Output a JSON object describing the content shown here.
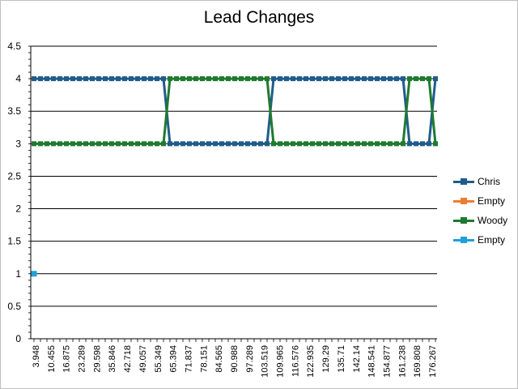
{
  "chart_data": {
    "type": "line",
    "title": "Lead Changes",
    "xlabel": "",
    "ylabel": "",
    "ylim": [
      0,
      4.5
    ],
    "y_ticks": [
      "0",
      "0.5",
      "1",
      "1.5",
      "2",
      "2.5",
      "3",
      "3.5",
      "4",
      "4.5"
    ],
    "x_tick_labels": [
      "3.948",
      "10.455",
      "16.875",
      "23.289",
      "29.598",
      "35.846",
      "42.718",
      "49.057",
      "55.349",
      "65.394",
      "71.837",
      "78.151",
      "84.565",
      "90.988",
      "97.289",
      "103.519",
      "109.965",
      "116.576",
      "122.935",
      "129.29",
      "135.71",
      "142.14",
      "148.541",
      "154.877",
      "161.238",
      "169.808",
      "176.267"
    ],
    "point_count": 63,
    "grid": true,
    "legend_position": "right",
    "series": [
      {
        "name": "Chris",
        "color": "#1f5c8b",
        "segments": [
          {
            "from": 0,
            "to": 20,
            "value": 4
          },
          {
            "from": 21,
            "to": 36,
            "value": 3
          },
          {
            "from": 37,
            "to": 57,
            "value": 4
          },
          {
            "from": 58,
            "to": 61,
            "value": 3
          },
          {
            "from": 62,
            "to": 62,
            "value": 4
          }
        ]
      },
      {
        "name": "Empty",
        "color": "#ed7d31",
        "segments": []
      },
      {
        "name": "Woody",
        "color": "#1e7a2e",
        "segments": [
          {
            "from": 0,
            "to": 20,
            "value": 3
          },
          {
            "from": 21,
            "to": 36,
            "value": 4
          },
          {
            "from": 37,
            "to": 57,
            "value": 3
          },
          {
            "from": 58,
            "to": 61,
            "value": 4
          },
          {
            "from": 62,
            "to": 62,
            "value": 3
          }
        ]
      },
      {
        "name": "Empty",
        "color": "#1fa0d8",
        "points": [
          {
            "index": 0,
            "value": 1
          }
        ]
      }
    ]
  }
}
